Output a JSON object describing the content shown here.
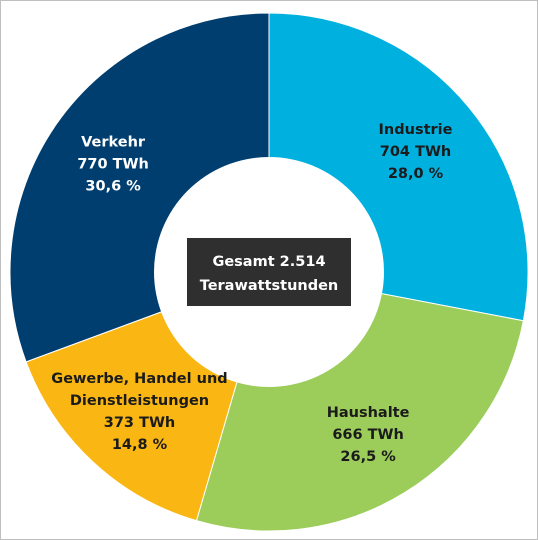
{
  "chart_data": {
    "type": "pie",
    "unit": "TWh",
    "center": {
      "line1": "Gesamt 2.514",
      "line2": "Terawattstunden"
    },
    "slices": [
      {
        "label_lines": [
          "Industrie"
        ],
        "value": 704,
        "value_text": "704 TWh",
        "percent": 28.0,
        "percent_text": "28,0 %",
        "color": "#00b1e0",
        "text_color": "#1b1b1b"
      },
      {
        "label_lines": [
          "Haushalte"
        ],
        "value": 666,
        "value_text": "666 TWh",
        "percent": 26.5,
        "percent_text": "26,5 %",
        "color": "#9ccd5b",
        "text_color": "#1b1b1b"
      },
      {
        "label_lines": [
          "Gewerbe, Handel und",
          "Dienstleistungen"
        ],
        "value": 373,
        "value_text": "373 TWh",
        "percent": 14.8,
        "percent_text": "14,8 %",
        "color": "#fab713",
        "text_color": "#1b1b1b"
      },
      {
        "label_lines": [
          "Verkehr"
        ],
        "value": 770,
        "value_text": "770 TWh",
        "percent": 30.6,
        "percent_text": "30,6 %",
        "color": "#003e6f",
        "text_color": "#ffffff"
      }
    ],
    "colors": {
      "center_box": "#2f2f2f",
      "hole": "#ffffff"
    }
  }
}
